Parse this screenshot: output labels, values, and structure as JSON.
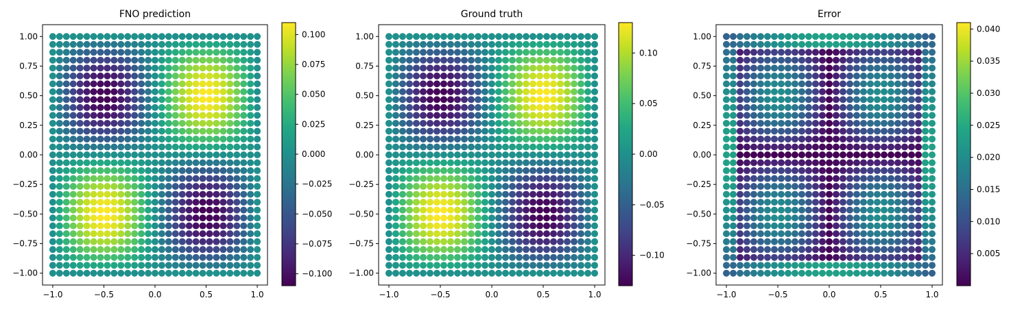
{
  "chart_data": [
    {
      "type": "scatter",
      "title": "FNO prediction",
      "xlabel": "",
      "ylabel": "",
      "grid": "31x31 uniform points",
      "xlim": [
        -1.1,
        1.1
      ],
      "ylim": [
        -1.1,
        1.1
      ],
      "x_ticks": [
        -1.0,
        -0.5,
        0.0,
        0.5,
        1.0
      ],
      "x_tick_labels": [
        "−1.0",
        "−0.5",
        "0.0",
        "0.5",
        "1.0"
      ],
      "y_ticks": [
        1.0,
        0.75,
        0.5,
        0.25,
        0.0,
        -0.25,
        -0.5,
        -0.75,
        -1.0
      ],
      "y_tick_labels": [
        "1.00",
        "0.75",
        "0.50",
        "0.25",
        "0.00",
        "−0.25",
        "−0.50",
        "−0.75",
        "−1.00"
      ],
      "field": "0.11*sin(pi*x)*sin(pi*y)",
      "colormap": "viridis",
      "colorbar": {
        "range": [
          -0.11,
          0.11
        ],
        "ticks": [
          0.1,
          0.075,
          0.05,
          0.025,
          0.0,
          -0.025,
          -0.05,
          -0.075,
          -0.1
        ],
        "tick_labels": [
          "0.100",
          "0.075",
          "0.050",
          "0.025",
          "0.000",
          "−0.025",
          "−0.050",
          "−0.075",
          "−0.100"
        ]
      }
    },
    {
      "type": "scatter",
      "title": "Ground truth",
      "xlabel": "",
      "ylabel": "",
      "grid": "31x31 uniform points",
      "xlim": [
        -1.1,
        1.1
      ],
      "ylim": [
        -1.1,
        1.1
      ],
      "x_ticks": [
        -1.0,
        -0.5,
        0.0,
        0.5,
        1.0
      ],
      "x_tick_labels": [
        "−1.0",
        "−0.5",
        "0.0",
        "0.5",
        "1.0"
      ],
      "y_ticks": [
        1.0,
        0.75,
        0.5,
        0.25,
        0.0,
        -0.25,
        -0.5,
        -0.75,
        -1.0
      ],
      "y_tick_labels": [
        "1.00",
        "0.75",
        "0.50",
        "0.25",
        "0.00",
        "−0.25",
        "−0.50",
        "−0.75",
        "−1.00"
      ],
      "field": "0.13*sin(pi*x)*sin(pi*y)",
      "colormap": "viridis",
      "colorbar": {
        "range": [
          -0.13,
          0.13
        ],
        "ticks": [
          0.1,
          0.05,
          0.0,
          -0.05,
          -0.1
        ],
        "tick_labels": [
          "0.10",
          "0.05",
          "0.00",
          "−0.05",
          "−0.10"
        ]
      }
    },
    {
      "type": "scatter",
      "title": "Error",
      "xlabel": "",
      "ylabel": "",
      "grid": "31x31 uniform points",
      "xlim": [
        -1.1,
        1.1
      ],
      "ylim": [
        -1.1,
        1.1
      ],
      "x_ticks": [
        -1.0,
        -0.5,
        0.0,
        0.5,
        1.0
      ],
      "x_tick_labels": [
        "−1.0",
        "−0.5",
        "0.0",
        "0.5",
        "1.0"
      ],
      "y_ticks": [
        1.0,
        0.75,
        0.5,
        0.25,
        0.0,
        -0.25,
        -0.5,
        -0.75,
        -1.0
      ],
      "y_tick_labels": [
        "1.00",
        "0.75",
        "0.50",
        "0.25",
        "0.00",
        "−0.25",
        "−0.50",
        "−0.75",
        "−1.00"
      ],
      "field": "|FNO prediction - Ground truth|",
      "colormap": "viridis",
      "colorbar": {
        "range": [
          0.0,
          0.041
        ],
        "ticks": [
          0.04,
          0.035,
          0.03,
          0.025,
          0.02,
          0.015,
          0.01,
          0.005
        ],
        "tick_labels": [
          "0.040",
          "0.035",
          "0.030",
          "0.025",
          "0.020",
          "0.015",
          "0.010",
          "0.005"
        ]
      }
    }
  ]
}
